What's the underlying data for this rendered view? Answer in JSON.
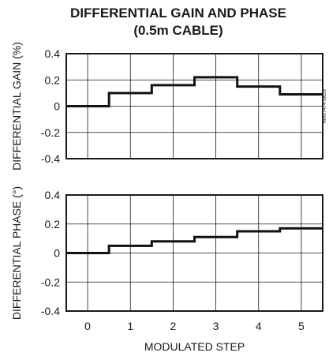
{
  "chart_data": [
    {
      "type": "line",
      "step": true,
      "title_lines": [
        "DIFFERENTIAL GAIN AND PHASE",
        "(0.5m CABLE)"
      ],
      "side_label": "MAX7474 toc05",
      "ylabel": "DIFFERENTIAL GAIN (%)",
      "xlabel": "",
      "categories": [
        0,
        1,
        2,
        3,
        4,
        5
      ],
      "values": [
        0.0,
        0.1,
        0.16,
        0.22,
        0.15,
        0.09
      ],
      "ylim": [
        -0.4,
        0.4
      ],
      "yticks": [
        "0.4",
        "0.2",
        "0",
        "-0.2",
        "-0.4"
      ],
      "grid": true
    },
    {
      "type": "line",
      "step": true,
      "ylabel": "DIFFERENTIAL PHASE (°)",
      "xlabel": "MODULATED STEP",
      "categories": [
        0,
        1,
        2,
        3,
        4,
        5
      ],
      "values": [
        0.0,
        0.05,
        0.08,
        0.11,
        0.15,
        0.17
      ],
      "ylim": [
        -0.4,
        0.4
      ],
      "yticks": [
        "0.4",
        "0.2",
        "0",
        "-0.2",
        "-0.4"
      ],
      "xticks": [
        "0",
        "1",
        "2",
        "3",
        "4",
        "5"
      ],
      "grid": true
    }
  ]
}
